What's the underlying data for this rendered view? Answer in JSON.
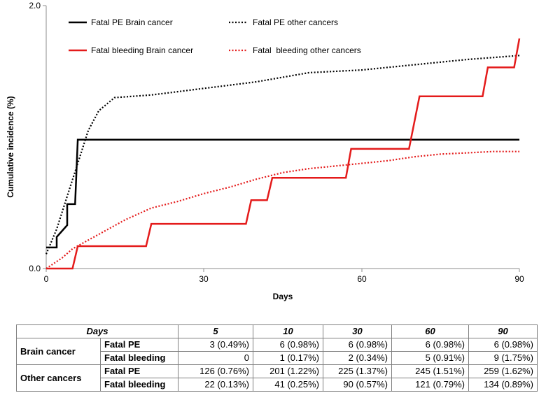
{
  "chart_data": {
    "type": "line",
    "title": "",
    "xlabel": "Days",
    "ylabel": "Cumulative incidence (%)",
    "xlim": [
      0,
      90
    ],
    "ylim": [
      0.0,
      2.0
    ],
    "x_ticks": [
      "0",
      "30",
      "60",
      "90"
    ],
    "y_ticks": [
      "0.0",
      "2.0"
    ],
    "legend_position": "top",
    "series": [
      {
        "name": "Fatal PE Brain cancer",
        "color": "#000000",
        "style": "solid",
        "points": [
          [
            0,
            0.16
          ],
          [
            2,
            0.16
          ],
          [
            2,
            0.24
          ],
          [
            4,
            0.33
          ],
          [
            4,
            0.49
          ],
          [
            5.5,
            0.49
          ],
          [
            6,
            0.98
          ],
          [
            90,
            0.98
          ]
        ]
      },
      {
        "name": "Fatal PE other cancers",
        "color": "#000000",
        "style": "dotted",
        "points": [
          [
            0,
            0.11
          ],
          [
            2,
            0.3
          ],
          [
            4,
            0.55
          ],
          [
            6,
            0.8
          ],
          [
            8,
            1.05
          ],
          [
            10,
            1.2
          ],
          [
            13,
            1.3
          ],
          [
            20,
            1.32
          ],
          [
            30,
            1.37
          ],
          [
            40,
            1.42
          ],
          [
            50,
            1.49
          ],
          [
            60,
            1.51
          ],
          [
            70,
            1.55
          ],
          [
            80,
            1.59
          ],
          [
            90,
            1.62
          ]
        ]
      },
      {
        "name": "Fatal bleeding Brain cancer",
        "color": "#e41b1b",
        "style": "solid",
        "points": [
          [
            0,
            0.0
          ],
          [
            5,
            0.0
          ],
          [
            6,
            0.17
          ],
          [
            19,
            0.17
          ],
          [
            20,
            0.34
          ],
          [
            38,
            0.34
          ],
          [
            39,
            0.52
          ],
          [
            42,
            0.52
          ],
          [
            43,
            0.69
          ],
          [
            57,
            0.69
          ],
          [
            58,
            0.91
          ],
          [
            69,
            0.91
          ],
          [
            71,
            1.31
          ],
          [
            83,
            1.31
          ],
          [
            84,
            1.53
          ],
          [
            89,
            1.53
          ],
          [
            90,
            1.75
          ]
        ]
      },
      {
        "name": "Fatal  bleeding other cancers",
        "color": "#e41b1b",
        "style": "dotted",
        "points": [
          [
            0,
            0.0
          ],
          [
            3,
            0.08
          ],
          [
            5,
            0.15
          ],
          [
            10,
            0.26
          ],
          [
            15,
            0.37
          ],
          [
            20,
            0.46
          ],
          [
            25,
            0.51
          ],
          [
            30,
            0.57
          ],
          [
            35,
            0.62
          ],
          [
            40,
            0.68
          ],
          [
            45,
            0.73
          ],
          [
            50,
            0.76
          ],
          [
            55,
            0.78
          ],
          [
            60,
            0.8
          ],
          [
            65,
            0.82
          ],
          [
            70,
            0.85
          ],
          [
            75,
            0.87
          ],
          [
            80,
            0.88
          ],
          [
            85,
            0.89
          ],
          [
            90,
            0.89
          ]
        ]
      }
    ]
  },
  "table": {
    "header": [
      "Days",
      "5",
      "10",
      "30",
      "60",
      "90"
    ],
    "groups": [
      {
        "label": "Brain cancer",
        "rows": [
          {
            "event": "Fatal PE",
            "values": [
              "3 (0.49%)",
              "6 (0.98%)",
              "6 (0.98%)",
              "6 (0.98%)",
              "6 (0.98%)"
            ]
          },
          {
            "event": "Fatal bleeding",
            "values": [
              "0",
              "1 (0.17%)",
              "2 (0.34%)",
              "5 (0.91%)",
              "9 (1.75%)"
            ]
          }
        ]
      },
      {
        "label": "Other cancers",
        "rows": [
          {
            "event": "Fatal PE",
            "values": [
              "126 (0.76%)",
              "201 (1.22%)",
              "225 (1.37%)",
              "245 (1.51%)",
              "259 (1.62%)"
            ]
          },
          {
            "event": "Fatal bleeding",
            "values": [
              "22 (0.13%)",
              "41 (0.25%)",
              "90 (0.57%)",
              "121 (0.79%)",
              "134 (0.89%)"
            ]
          }
        ]
      }
    ]
  }
}
